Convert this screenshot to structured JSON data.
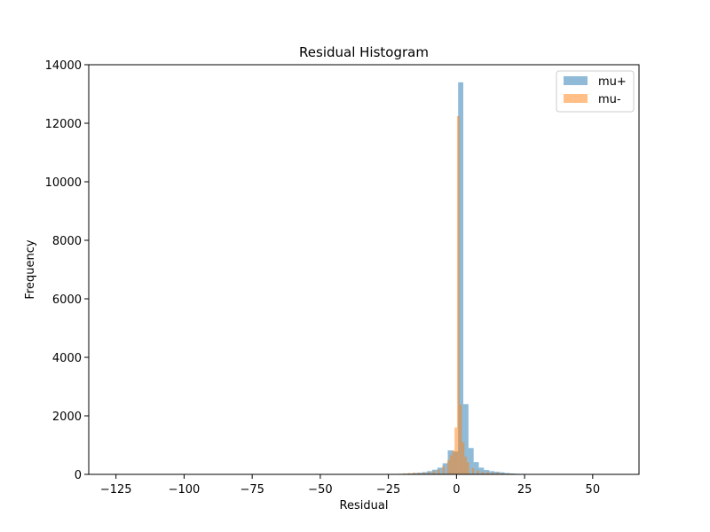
{
  "chart_data": {
    "type": "bar",
    "title": "Residual Histogram",
    "xlabel": "Residual",
    "ylabel": "Frequency",
    "xlim": [
      -135,
      67
    ],
    "ylim": [
      0,
      14000
    ],
    "xticks": [
      -125,
      -100,
      -75,
      -50,
      -25,
      0,
      25,
      50
    ],
    "yticks": [
      0,
      2000,
      4000,
      6000,
      8000,
      10000,
      12000,
      14000
    ],
    "xtick_labels": [
      "−125",
      "−100",
      "−75",
      "−50",
      "−25",
      "0",
      "25",
      "50"
    ],
    "ytick_labels": [
      "0",
      "2000",
      "4000",
      "6000",
      "8000",
      "10000",
      "12000",
      "14000"
    ],
    "grid": false,
    "legend_position": "top-right",
    "series": [
      {
        "name": "mu+",
        "color": "#1f77b4",
        "alpha": 0.5,
        "bin_width": 1.9,
        "bins": [
          [
            -130.0,
            2
          ],
          [
            -26.0,
            5
          ],
          [
            -24.1,
            8
          ],
          [
            -22.2,
            12
          ],
          [
            -20.3,
            20
          ],
          [
            -18.4,
            28
          ],
          [
            -16.5,
            40
          ],
          [
            -14.6,
            55
          ],
          [
            -12.7,
            75
          ],
          [
            -10.8,
            110
          ],
          [
            -8.9,
            160
          ],
          [
            -7.0,
            230
          ],
          [
            -5.1,
            380
          ],
          [
            -3.2,
            820
          ],
          [
            -1.3,
            780
          ],
          [
            0.6,
            13400
          ],
          [
            2.5,
            2400
          ],
          [
            4.4,
            900
          ],
          [
            6.3,
            420
          ],
          [
            8.2,
            230
          ],
          [
            10.1,
            150
          ],
          [
            12.0,
            110
          ],
          [
            13.9,
            90
          ],
          [
            15.8,
            70
          ],
          [
            17.7,
            45
          ],
          [
            19.6,
            30
          ],
          [
            21.5,
            20
          ],
          [
            23.4,
            12
          ],
          [
            25.3,
            10
          ],
          [
            27.2,
            6
          ],
          [
            35.0,
            3
          ],
          [
            50.0,
            2
          ],
          [
            58.0,
            1
          ]
        ]
      },
      {
        "name": "mu-",
        "color": "#ff7f0e",
        "alpha": 0.5,
        "bin_width": 0.9,
        "bins": [
          [
            -25.0,
            6
          ],
          [
            -23.2,
            12
          ],
          [
            -21.4,
            20
          ],
          [
            -19.6,
            35
          ],
          [
            -17.8,
            50
          ],
          [
            -16.0,
            60
          ],
          [
            -14.2,
            55
          ],
          [
            -12.4,
            60
          ],
          [
            -10.6,
            80
          ],
          [
            -8.8,
            110
          ],
          [
            -7.0,
            170
          ],
          [
            -5.2,
            280
          ],
          [
            -3.4,
            480
          ],
          [
            -2.5,
            650
          ],
          [
            -1.6,
            820
          ],
          [
            -0.7,
            1600
          ],
          [
            0.2,
            12250
          ],
          [
            1.1,
            2380
          ],
          [
            2.0,
            1100
          ],
          [
            2.9,
            600
          ],
          [
            3.8,
            420
          ],
          [
            5.6,
            220
          ],
          [
            7.4,
            140
          ],
          [
            9.2,
            100
          ],
          [
            11.0,
            80
          ],
          [
            12.8,
            65
          ],
          [
            14.6,
            55
          ],
          [
            16.4,
            40
          ],
          [
            18.2,
            30
          ],
          [
            20.0,
            20
          ],
          [
            21.8,
            12
          ],
          [
            23.6,
            6
          ]
        ]
      }
    ]
  }
}
